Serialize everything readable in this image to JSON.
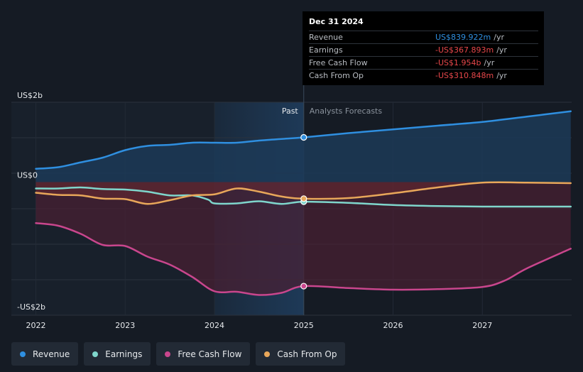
{
  "chart_data": {
    "type": "line",
    "x_label_ticks": [
      "2022",
      "2023",
      "2024",
      "2025",
      "2026",
      "2027"
    ],
    "x_range": [
      2021.98,
      2028.0
    ],
    "y_range": [
      -2.5,
      1.5
    ],
    "y_ticks": [
      {
        "value": 1.5,
        "label": "US$2b"
      },
      {
        "value": 0,
        "label": "US$0"
      },
      {
        "value": -2.5,
        "label": "-US$2b"
      }
    ],
    "past_label": "Past",
    "forecast_label": "Analysts Forecasts",
    "divider_x": 2025.0,
    "highlight_start_x": 2024.0,
    "series": [
      {
        "name": "Revenue",
        "color": "#2f8fe0",
        "points": [
          [
            2022.0,
            0.25
          ],
          [
            2022.25,
            0.28
          ],
          [
            2022.5,
            0.37
          ],
          [
            2022.75,
            0.46
          ],
          [
            2023.0,
            0.6
          ],
          [
            2023.25,
            0.68
          ],
          [
            2023.5,
            0.7
          ],
          [
            2023.75,
            0.74
          ],
          [
            2024.0,
            0.74
          ],
          [
            2024.25,
            0.74
          ],
          [
            2024.5,
            0.78
          ],
          [
            2024.75,
            0.81
          ],
          [
            2025.0,
            0.84
          ],
          [
            2025.5,
            0.92
          ],
          [
            2026.0,
            0.99
          ],
          [
            2026.5,
            1.06
          ],
          [
            2027.0,
            1.13
          ],
          [
            2027.5,
            1.23
          ],
          [
            2027.99,
            1.33
          ]
        ]
      },
      {
        "name": "Earnings",
        "color": "#7fd6cc",
        "points": [
          [
            2022.0,
            -0.12
          ],
          [
            2022.25,
            -0.12
          ],
          [
            2022.5,
            -0.1
          ],
          [
            2022.75,
            -0.13
          ],
          [
            2023.0,
            -0.14
          ],
          [
            2023.25,
            -0.18
          ],
          [
            2023.5,
            -0.25
          ],
          [
            2023.75,
            -0.25
          ],
          [
            2023.93,
            -0.33
          ],
          [
            2024.0,
            -0.4
          ],
          [
            2024.25,
            -0.4
          ],
          [
            2024.5,
            -0.36
          ],
          [
            2024.75,
            -0.41
          ],
          [
            2025.0,
            -0.368
          ],
          [
            2025.5,
            -0.39
          ],
          [
            2026.0,
            -0.43
          ],
          [
            2026.5,
            -0.45
          ],
          [
            2027.0,
            -0.46
          ],
          [
            2027.5,
            -0.46
          ],
          [
            2027.99,
            -0.46
          ]
        ]
      },
      {
        "name": "Free Cash Flow",
        "color": "#c9468d",
        "points": [
          [
            2022.0,
            -0.77
          ],
          [
            2022.25,
            -0.82
          ],
          [
            2022.5,
            -0.97
          ],
          [
            2022.75,
            -1.18
          ],
          [
            2023.0,
            -1.2
          ],
          [
            2023.25,
            -1.4
          ],
          [
            2023.5,
            -1.55
          ],
          [
            2023.75,
            -1.78
          ],
          [
            2024.0,
            -2.05
          ],
          [
            2024.25,
            -2.06
          ],
          [
            2024.5,
            -2.12
          ],
          [
            2024.75,
            -2.08
          ],
          [
            2025.0,
            -1.954
          ],
          [
            2025.5,
            -1.99
          ],
          [
            2026.0,
            -2.02
          ],
          [
            2026.5,
            -2.01
          ],
          [
            2027.0,
            -1.97
          ],
          [
            2027.25,
            -1.85
          ],
          [
            2027.5,
            -1.62
          ],
          [
            2027.99,
            -1.25
          ]
        ]
      },
      {
        "name": "Cash From Op",
        "color": "#e8a75a",
        "points": [
          [
            2022.0,
            -0.2
          ],
          [
            2022.25,
            -0.24
          ],
          [
            2022.5,
            -0.25
          ],
          [
            2022.75,
            -0.31
          ],
          [
            2023.0,
            -0.32
          ],
          [
            2023.25,
            -0.41
          ],
          [
            2023.5,
            -0.34
          ],
          [
            2023.75,
            -0.25
          ],
          [
            2024.0,
            -0.23
          ],
          [
            2024.25,
            -0.12
          ],
          [
            2024.5,
            -0.18
          ],
          [
            2024.75,
            -0.27
          ],
          [
            2025.0,
            -0.311
          ],
          [
            2025.5,
            -0.3
          ],
          [
            2026.0,
            -0.21
          ],
          [
            2026.5,
            -0.1
          ],
          [
            2027.0,
            -0.01
          ],
          [
            2027.5,
            -0.01
          ],
          [
            2027.99,
            -0.02
          ]
        ]
      }
    ]
  },
  "tooltip": {
    "date": "Dec 31 2024",
    "rows": [
      {
        "label": "Revenue",
        "value": "US$839.922m",
        "unit": "/yr",
        "color": "#2f8fe0"
      },
      {
        "label": "Earnings",
        "value": "-US$367.893m",
        "unit": "/yr",
        "color": "#e8474a"
      },
      {
        "label": "Free Cash Flow",
        "value": "-US$1.954b",
        "unit": "/yr",
        "color": "#e8474a"
      },
      {
        "label": "Cash From Op",
        "value": "-US$310.848m",
        "unit": "/yr",
        "color": "#e8474a"
      }
    ]
  },
  "legend": [
    {
      "label": "Revenue",
      "color": "#2f8fe0"
    },
    {
      "label": "Earnings",
      "color": "#7fd6cc"
    },
    {
      "label": "Free Cash Flow",
      "color": "#c9468d"
    },
    {
      "label": "Cash From Op",
      "color": "#e8a75a"
    }
  ]
}
